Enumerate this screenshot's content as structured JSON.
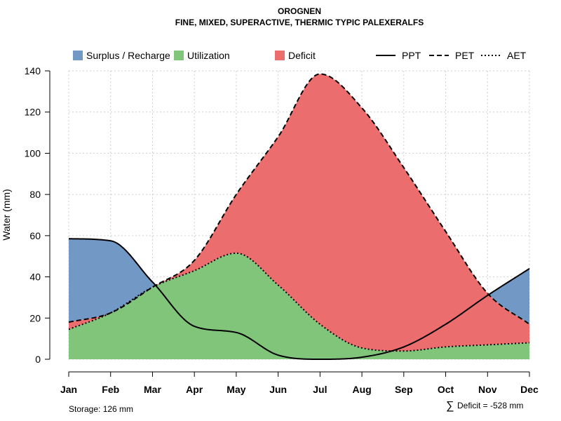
{
  "chart_data": {
    "type": "area",
    "title": "OROGNEN",
    "subtitle": "FINE, MIXED, SUPERACTIVE, THERMIC TYPIC PALEXERALFS",
    "xlabel": "",
    "ylabel": "Water (mm)",
    "ylim": [
      0,
      140
    ],
    "yticks": [
      0,
      20,
      40,
      60,
      80,
      100,
      120,
      140
    ],
    "grid": true,
    "categories": [
      "Jan",
      "Feb",
      "Mar",
      "Apr",
      "May",
      "Jun",
      "Jul",
      "Aug",
      "Sep",
      "Oct",
      "Nov",
      "Dec"
    ],
    "series": [
      {
        "name": "PPT",
        "style": "solid",
        "values": [
          58.5,
          57.5,
          37.5,
          16,
          13,
          2,
          0,
          1,
          6,
          17,
          31,
          44
        ]
      },
      {
        "name": "PET",
        "style": "dashed",
        "values": [
          18,
          22.5,
          35,
          48,
          80,
          108,
          138.5,
          122,
          93,
          62,
          32,
          17
        ]
      },
      {
        "name": "AET",
        "style": "dotted",
        "values": [
          14.5,
          22.5,
          35,
          43,
          51.5,
          36,
          17,
          5.5,
          4,
          6,
          7,
          8
        ]
      }
    ],
    "legend": [
      {
        "label": "Surplus / Recharge",
        "kind": "fill",
        "color": "#7299c6"
      },
      {
        "label": "Utilization",
        "kind": "fill",
        "color": "#80c57a"
      },
      {
        "label": "Deficit",
        "kind": "fill",
        "color": "#ec6d6d"
      },
      {
        "label": "PPT",
        "kind": "line",
        "style": "solid"
      },
      {
        "label": "PET",
        "kind": "line",
        "style": "dashed"
      },
      {
        "label": "AET",
        "kind": "line",
        "style": "dotted"
      }
    ],
    "legend_position": "top",
    "colors": {
      "surplus": "#7299c6",
      "utilization": "#80c57a",
      "deficit": "#ec6d6d"
    }
  },
  "footer": {
    "storage": "Storage: 126 mm",
    "deficit_symbol": "∑",
    "deficit": "Deficit = -528 mm"
  }
}
